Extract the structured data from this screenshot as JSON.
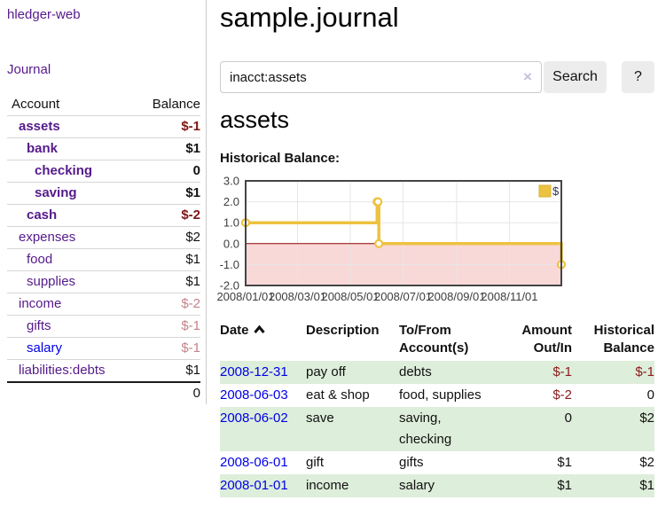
{
  "app": {
    "title": "hledger-web",
    "nav_journal": "Journal"
  },
  "sidebar": {
    "columns": {
      "account": "Account",
      "balance": "Balance"
    },
    "accounts": [
      {
        "name": "assets",
        "depth": 1,
        "balance": "$-1",
        "bold": true,
        "neg": "strong",
        "visited": true
      },
      {
        "name": "bank",
        "depth": 2,
        "balance": "$1",
        "bold": true,
        "neg": null,
        "visited": true
      },
      {
        "name": "checking",
        "depth": 3,
        "balance": "0",
        "bold": true,
        "neg": null,
        "visited": true
      },
      {
        "name": "saving",
        "depth": 3,
        "balance": "$1",
        "bold": true,
        "neg": null,
        "visited": true
      },
      {
        "name": "cash",
        "depth": 2,
        "balance": "$-2",
        "bold": true,
        "neg": "strong",
        "visited": true
      },
      {
        "name": "expenses",
        "depth": 1,
        "balance": "$2",
        "bold": false,
        "neg": null,
        "visited": true
      },
      {
        "name": "food",
        "depth": 2,
        "balance": "$1",
        "bold": false,
        "neg": null,
        "visited": true
      },
      {
        "name": "supplies",
        "depth": 2,
        "balance": "$1",
        "bold": false,
        "neg": null,
        "visited": true
      },
      {
        "name": "income",
        "depth": 1,
        "balance": "$-2",
        "bold": false,
        "neg": "soft",
        "visited": true
      },
      {
        "name": "gifts",
        "depth": 2,
        "balance": "$-1",
        "bold": false,
        "neg": "soft",
        "visited": true
      },
      {
        "name": "salary",
        "depth": 2,
        "balance": "$-1",
        "bold": false,
        "neg": "soft",
        "visited": false
      },
      {
        "name": "liabilities:debts",
        "depth": 1,
        "balance": "$1",
        "bold": false,
        "neg": null,
        "visited": true
      }
    ],
    "total_balance": "0"
  },
  "page": {
    "title": "sample.journal",
    "account_heading": "assets",
    "chart_label": "Historical Balance:"
  },
  "search": {
    "value": "inacct:assets",
    "clear_icon": "×",
    "submit_label": "Search",
    "help_label": "?"
  },
  "chart_data": {
    "type": "line",
    "step": true,
    "title": "Historical Balance",
    "x": [
      "2008-01-01",
      "2008-06-01",
      "2008-06-02",
      "2008-06-03",
      "2008-12-31"
    ],
    "series": [
      {
        "name": "$",
        "color": "#edc240",
        "values": [
          1,
          2,
          2,
          0,
          -1
        ]
      }
    ],
    "xlim": [
      "2008-01-01",
      "2008-12-31"
    ],
    "ylim": [
      -2,
      3
    ],
    "y_ticks": [
      3.0,
      2.0,
      1.0,
      0.0,
      -1.0,
      -2.0
    ],
    "x_ticks": [
      "2008/01/01",
      "2008/03/01",
      "2008/05/01",
      "2008/07/01",
      "2008/09/01",
      "2008/11/01"
    ],
    "legend": "$",
    "legend_position": "top-right",
    "grid": true,
    "negative_fill": "#f9d8d8",
    "zero_line": "#8b0000"
  },
  "transactions": {
    "columns": [
      {
        "label": "Date",
        "sort": "asc"
      },
      {
        "label": "Description"
      },
      {
        "label": "To/From\nAccount(s)"
      },
      {
        "label": "Amount\nOut/In"
      },
      {
        "label": "Historical\nBalance"
      }
    ],
    "rows": [
      {
        "date": "2008-12-31",
        "description": "pay off",
        "accounts": "debts",
        "amount": "$-1",
        "amount_negative": true,
        "balance": "$-1",
        "balance_negative": true
      },
      {
        "date": "2008-06-03",
        "description": "eat & shop",
        "accounts": "food, supplies",
        "amount": "$-2",
        "amount_negative": true,
        "balance": "0",
        "balance_negative": false
      },
      {
        "date": "2008-06-02",
        "description": "save",
        "accounts": "saving, checking",
        "amount": "0",
        "amount_negative": false,
        "balance": "$2",
        "balance_negative": false
      },
      {
        "date": "2008-06-01",
        "description": "gift",
        "accounts": "gifts",
        "amount": "$1",
        "amount_negative": false,
        "balance": "$2",
        "balance_negative": false
      },
      {
        "date": "2008-01-01",
        "description": "income",
        "accounts": "salary",
        "amount": "$1",
        "amount_negative": false,
        "balance": "$1",
        "balance_negative": false
      }
    ]
  },
  "colors": {
    "visited_link": "#551a8b",
    "unvisited_link": "#0000e6",
    "negative_strong": "#7e1414",
    "negative_soft": "#c4838a",
    "table_negative": "#8b1a1a",
    "row_highlight": "#ddeeda",
    "series": "#edc240"
  }
}
